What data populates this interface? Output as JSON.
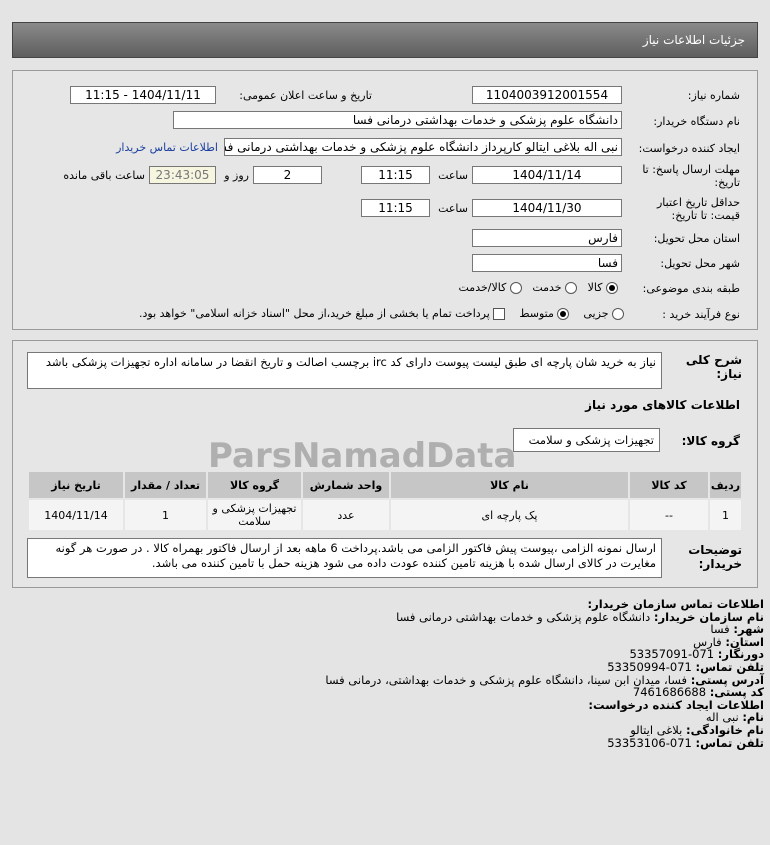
{
  "header": {
    "title": "جزئیات اطلاعات نیاز"
  },
  "form": {
    "need_number_label": "شماره نیاز:",
    "need_number": "1104003912001554",
    "announce_label": "تاریخ و ساعت اعلان عمومی:",
    "announce_value": "1404/11/11 - 11:15",
    "buyer_label": "نام دستگاه خریدار:",
    "buyer_value": "دانشگاه علوم پزشکی و خدمات بهداشتی درمانی فسا",
    "creator_label": "ایجاد کننده درخواست:",
    "creator_value": "نبی اله بلاغی ایتالو کارپرداز دانشگاه علوم پزشکی و خدمات بهداشتی درمانی فسا",
    "contact_link": "اطلاعات تماس خریدار",
    "deadline_label": "مهلت ارسال پاسخ: تا تاریخ:",
    "deadline_date": "1404/11/14",
    "time_label": "ساعت",
    "deadline_time": "11:15",
    "days": "2",
    "days_label": "روز و",
    "remaining": "23:43:05",
    "remaining_label": "ساعت باقی مانده",
    "validity_label": "حداقل تاریخ اعتبار قیمت: تا تاریخ:",
    "validity_date": "1404/11/30",
    "validity_time": "11:15",
    "province_label": "استان محل تحویل:",
    "province": "فارس",
    "city_label": "شهر محل تحویل:",
    "city": "فسا",
    "category_label": "طبقه بندی موضوعی:",
    "category_options": [
      "کالا",
      "خدمت",
      "کالا/خدمت"
    ],
    "category_selected": "کالا",
    "process_label": "نوع فرآیند خرید :",
    "process_options": [
      "جزیی",
      "متوسط"
    ],
    "process_selected": "متوسط",
    "payment_note": "پرداخت تمام یا بخشی از مبلغ خرید،از محل \"اسناد خزانه اسلامی\" خواهد بود."
  },
  "details": {
    "summary_label": "شرح کلی نیاز:",
    "summary": "نیاز به خرید شان پارچه ای طبق لیست پیوست دارای کد irc برچسب اصالت و تاریخ انقضا در سامانه اداره تجهیزات پزشکی باشد",
    "goods_heading": "اطلاعات کالاهای مورد نیاز",
    "group_label": "گروه کالا:",
    "group_value": "تجهیزات پزشکی و سلامت",
    "table": {
      "headers": [
        "ردیف",
        "کد کالا",
        "نام کالا",
        "واحد شمارش",
        "گروه کالا",
        "تعداد / مقدار",
        "تاریخ نیاز"
      ],
      "rows": [
        [
          "1",
          "--",
          "پک پارچه ای",
          "عدد",
          "تجهیزات پزشکی و سلامت",
          "1",
          "1404/11/14"
        ]
      ]
    },
    "notes_label": "توضیحات خریدار:",
    "notes": "ارسال نمونه الزامی ،پیوست پیش فاکتور الزامی می باشد.پرداخت 6 ماهه بعد از ارسال فاکتور بهمراه کالا . در صورت هر گونه مغایرت در کالای ارسال شده با هزینه تامین کننده عودت داده می شود هزینه حمل با تامین کننده می باشد."
  },
  "contact": {
    "heading": "اطلاعات تماس سازمان خریدار:",
    "org_label": "نام سازمان خریدار:",
    "org": "دانشگاه علوم پزشکی و خدمات بهداشتی درمانی فسا",
    "city_label": "شهر:",
    "city": "فسا",
    "province_label": "استان:",
    "province": "فارس",
    "fax_label": "دورنگار:",
    "fax": "071-53357091",
    "phone_label": "تلفن تماس:",
    "phone": "071-53350994",
    "address_label": "آدرس پستی:",
    "address": "فسا، میدان ابن سینا، دانشگاه علوم پزشکی و خدمات بهداشتی، درمانی فسا",
    "postal_label": "کد پستی:",
    "postal": "7461686688",
    "creator_heading": "اطلاعات ایجاد کننده درخواست:",
    "name_label": "نام:",
    "name": "نبی اله",
    "family_label": "نام خانوادگی:",
    "family": "بلاغی ایتالو",
    "cphone_label": "تلفن تماس:",
    "cphone": "071-53353106"
  },
  "watermark": "ParsNamadData"
}
